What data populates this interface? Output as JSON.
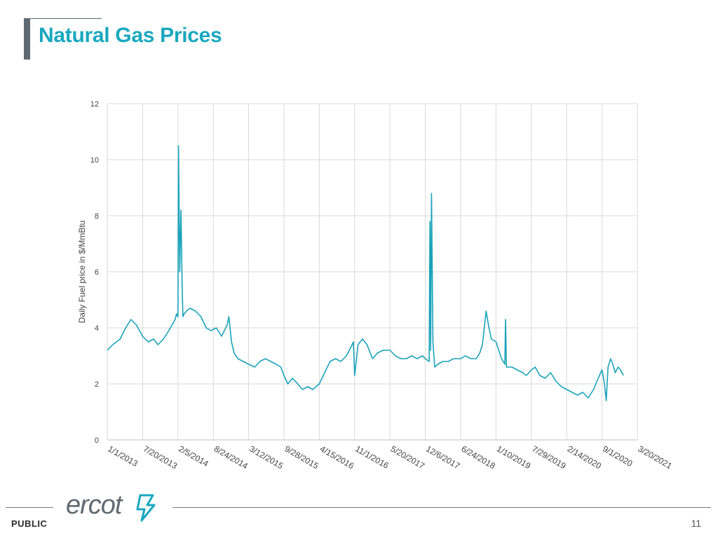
{
  "slide": {
    "title": "Natural Gas Prices",
    "footer_label": "PUBLIC",
    "page_number": "11",
    "logo_text": "ercot",
    "colors": {
      "title": "#1aa8bf",
      "line": "#1aa3b9",
      "accent_bar": "#5f6a72"
    }
  },
  "chart_data": {
    "type": "line",
    "ylabel": "Daily Fuel price in $/MmBtu",
    "xlabel": "",
    "ylim": [
      0,
      12
    ],
    "yticks": [
      0,
      2,
      4,
      6,
      8,
      10,
      12
    ],
    "xticks": [
      "1/1/2013",
      "7/20/2013",
      "2/5/2014",
      "8/24/2014",
      "3/12/2015",
      "9/28/2015",
      "4/15/2016",
      "11/1/2016",
      "5/20/2017",
      "12/6/2017",
      "6/24/2018",
      "1/10/2019",
      "7/29/2019",
      "2/14/2020",
      "9/1/2020",
      "3/20/2021"
    ],
    "grid": true,
    "legend": "none",
    "series": [
      {
        "x": [
          "1/1/2013",
          "2/1/2013",
          "3/15/2013",
          "4/15/2013",
          "5/15/2013",
          "6/15/2013",
          "7/20/2013",
          "8/20/2013",
          "9/20/2013",
          "10/15/2013",
          "11/15/2013",
          "12/15/2013",
          "1/20/2014",
          "1/28/2014",
          "2/5/2014",
          "2/8/2014",
          "2/15/2014",
          "2/22/2014",
          "3/1/2014",
          "3/5/2014",
          "3/12/2014",
          "3/25/2014",
          "4/15/2014",
          "5/15/2014",
          "6/15/2014",
          "7/15/2014",
          "8/10/2014",
          "9/10/2014",
          "10/10/2014",
          "11/10/2014",
          "11/20/2014",
          "12/5/2014",
          "12/20/2014",
          "1/10/2015",
          "2/10/2015",
          "3/12/2015",
          "4/15/2015",
          "5/15/2015",
          "6/15/2015",
          "7/15/2015",
          "8/15/2015",
          "9/10/2015",
          "9/28/2015",
          "10/20/2015",
          "11/15/2015",
          "12/15/2015",
          "1/10/2016",
          "2/10/2016",
          "3/10/2016",
          "4/15/2016",
          "5/15/2016",
          "6/15/2016",
          "7/15/2016",
          "8/15/2016",
          "9/15/2016",
          "10/10/2016",
          "10/25/2016",
          "11/1/2016",
          "11/20/2016",
          "12/15/2016",
          "1/10/2017",
          "2/10/2017",
          "3/10/2017",
          "4/10/2017",
          "5/20/2017",
          "6/20/2017",
          "7/20/2017",
          "8/20/2017",
          "9/20/2017",
          "10/20/2017",
          "11/20/2017",
          "12/6/2017",
          "12/28/2017",
          "1/1/2018",
          "1/5/2018",
          "1/10/2018",
          "1/18/2018",
          "1/28/2018",
          "2/15/2018",
          "3/15/2018",
          "4/15/2018",
          "5/15/2018",
          "6/24/2018",
          "7/20/2018",
          "8/20/2018",
          "9/20/2018",
          "10/10/2018",
          "10/25/2018",
          "11/15/2018",
          "12/1/2018",
          "12/15/2018",
          "1/10/2019",
          "2/10/2019",
          "3/1/2019",
          "3/5/2019",
          "3/10/2019",
          "4/10/2019",
          "5/10/2019",
          "6/10/2019",
          "7/1/2019",
          "7/29/2019",
          "8/20/2019",
          "9/15/2019",
          "10/15/2019",
          "11/15/2019",
          "12/15/2019",
          "1/15/2020",
          "2/14/2020",
          "3/15/2020",
          "4/15/2020",
          "5/15/2020",
          "6/15/2020",
          "7/15/2020",
          "8/10/2020",
          "9/1/2020",
          "9/15/2020",
          "9/25/2020",
          "10/5/2020",
          "10/20/2020",
          "11/1/2020",
          "11/15/2020",
          "12/1/2020",
          "12/15/2020",
          "12/31/2020"
        ],
        "y": [
          3.2,
          3.4,
          3.6,
          4.0,
          4.3,
          4.1,
          3.7,
          3.5,
          3.6,
          3.4,
          3.6,
          3.9,
          4.3,
          4.5,
          4.4,
          10.5,
          6.0,
          8.2,
          5.5,
          4.4,
          4.5,
          4.6,
          4.7,
          4.6,
          4.4,
          4.0,
          3.9,
          4.0,
          3.7,
          4.1,
          4.4,
          3.5,
          3.1,
          2.9,
          2.8,
          2.7,
          2.6,
          2.8,
          2.9,
          2.8,
          2.7,
          2.6,
          2.3,
          2.0,
          2.2,
          2.0,
          1.8,
          1.9,
          1.8,
          2.0,
          2.4,
          2.8,
          2.9,
          2.8,
          3.0,
          3.3,
          3.5,
          2.3,
          3.4,
          3.6,
          3.4,
          2.9,
          3.1,
          3.2,
          3.2,
          3.0,
          2.9,
          2.9,
          3.0,
          2.9,
          3.0,
          2.9,
          2.8,
          7.8,
          3.2,
          8.8,
          3.5,
          2.6,
          2.7,
          2.8,
          2.8,
          2.9,
          2.9,
          3.0,
          2.9,
          2.9,
          3.1,
          3.4,
          4.6,
          4.0,
          3.6,
          3.5,
          2.9,
          2.7,
          4.3,
          2.6,
          2.6,
          2.5,
          2.4,
          2.3,
          2.5,
          2.6,
          2.3,
          2.2,
          2.4,
          2.1,
          1.9,
          1.8,
          1.7,
          1.6,
          1.7,
          1.5,
          1.8,
          2.2,
          2.5,
          2.0,
          1.4,
          2.6,
          2.9,
          2.7,
          2.4,
          2.6,
          2.5,
          2.3
        ]
      }
    ]
  }
}
